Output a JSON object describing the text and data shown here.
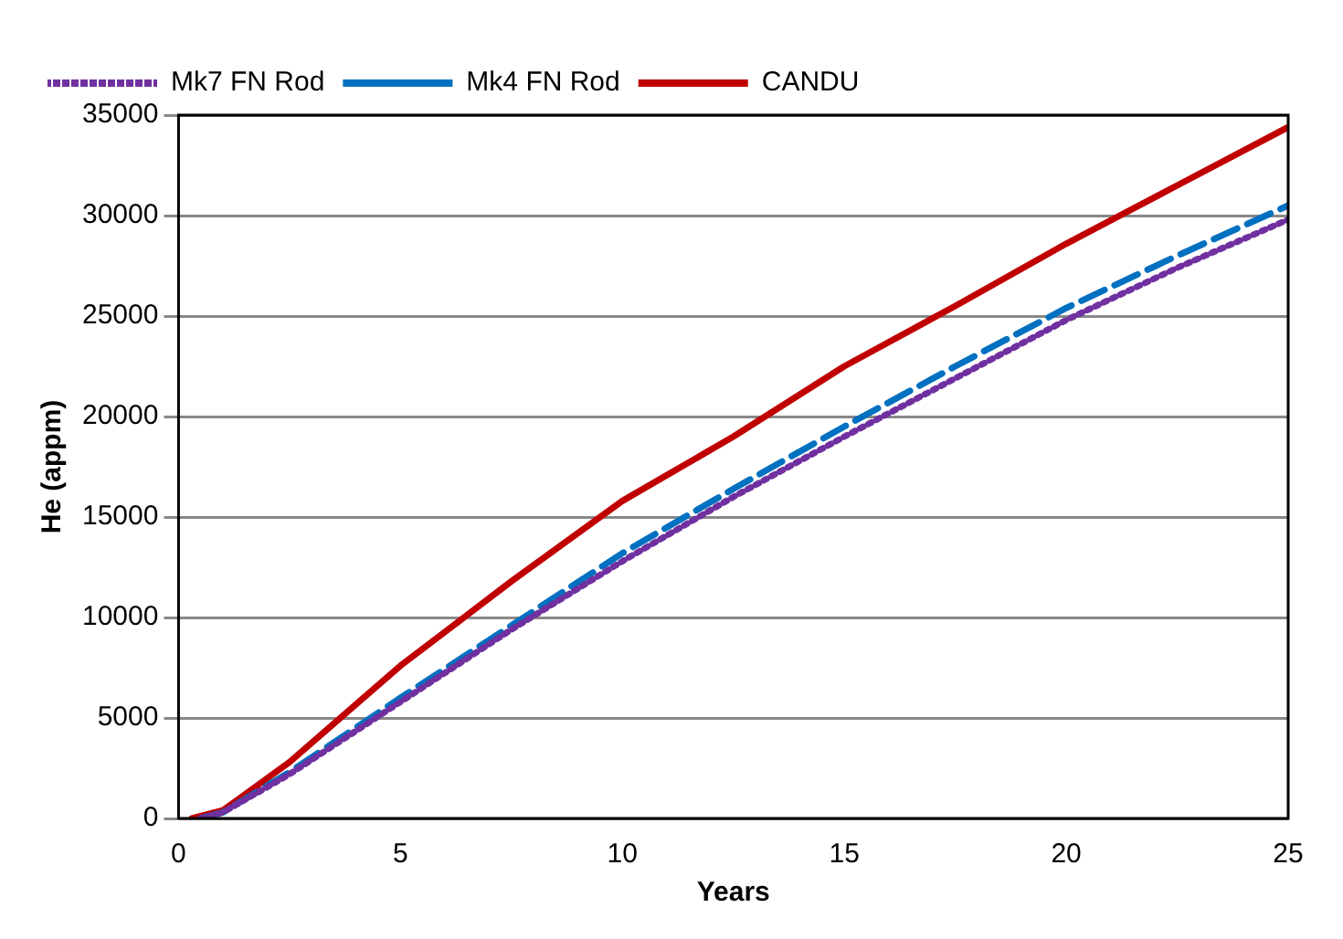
{
  "chart_data": {
    "type": "line",
    "xlabel": "Years",
    "ylabel": "He (appm)",
    "xlim": [
      0,
      25
    ],
    "xticks": [
      0,
      5,
      10,
      15,
      20,
      25
    ],
    "ylim": [
      0,
      35000
    ],
    "yticks": [
      0,
      5000,
      10000,
      15000,
      20000,
      25000,
      30000,
      35000
    ],
    "grid": "y",
    "legend": "top left",
    "marker": "none",
    "series": [
      {
        "name": "Mk7 FN Rod",
        "color": "#7030a0",
        "line_style": "dotted",
        "x": [
          0.5,
          1,
          2.5,
          5,
          7.5,
          10,
          12.5,
          15,
          17.5,
          20,
          22.5,
          25
        ],
        "values": [
          0,
          300,
          2200,
          5800,
          9400,
          12800,
          16000,
          19000,
          21900,
          24800,
          27400,
          29800
        ]
      },
      {
        "name": "Mk4 FN Rod",
        "color": "#0070c0",
        "line_style": "dashed",
        "x": [
          0.5,
          1,
          2.5,
          5,
          7.5,
          10,
          12.5,
          15,
          17.5,
          20,
          22.5,
          25
        ],
        "values": [
          0,
          300,
          2300,
          6000,
          9600,
          13200,
          16400,
          19500,
          22500,
          25400,
          28000,
          30500
        ]
      },
      {
        "name": "CANDU",
        "color": "#c00000",
        "line_style": "solid",
        "x": [
          0.3,
          1,
          2.5,
          5,
          7.5,
          10,
          12.5,
          15,
          17.5,
          20,
          22.5,
          25
        ],
        "values": [
          0,
          400,
          2800,
          7600,
          11800,
          15800,
          19000,
          22500,
          25500,
          28600,
          31500,
          34400
        ]
      }
    ]
  }
}
